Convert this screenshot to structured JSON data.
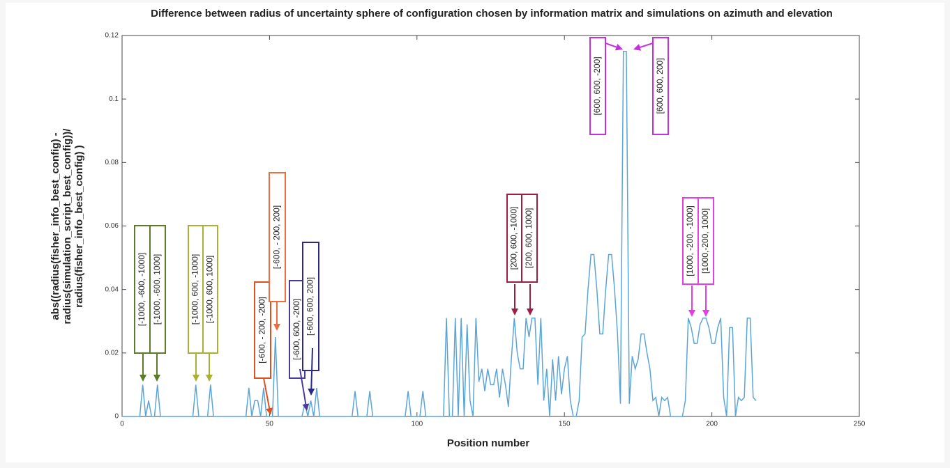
{
  "chart_data": {
    "type": "line",
    "title": "Difference between radius of uncertainty sphere of configuration chosen by information matrix and simulations on azimuth and elevation",
    "xlabel": "Position number",
    "ylabel": [
      "abs((radius(fisher_info_best_config) -",
      "radius(simulation_script_best_config))/",
      "radius(fisher_info_best_config) )"
    ],
    "color": "#5aa5d8",
    "x": [
      0,
      1,
      2,
      3,
      4,
      5,
      6,
      7,
      8,
      9,
      10,
      11,
      12,
      13,
      14,
      15,
      16,
      17,
      18,
      19,
      20,
      21,
      22,
      23,
      24,
      25,
      26,
      27,
      28,
      29,
      30,
      31,
      32,
      33,
      34,
      35,
      36,
      37,
      38,
      39,
      40,
      41,
      42,
      43,
      44,
      45,
      46,
      47,
      48,
      49,
      50,
      51,
      52,
      53,
      54,
      55,
      56,
      57,
      58,
      59,
      60,
      61,
      62,
      63,
      64,
      65,
      66,
      67,
      68,
      69,
      70,
      71,
      72,
      73,
      74,
      75,
      76,
      77,
      78,
      79,
      80,
      81,
      82,
      83,
      84,
      85,
      86,
      87,
      88,
      89,
      90,
      91,
      92,
      93,
      94,
      95,
      96,
      97,
      98,
      99,
      100,
      101,
      102,
      103,
      104,
      105,
      106,
      107,
      108,
      109,
      110,
      111,
      112,
      113,
      114,
      115,
      116,
      117,
      118,
      119,
      120,
      121,
      122,
      123,
      124,
      125,
      126,
      127,
      128,
      129,
      130,
      131,
      132,
      133,
      134,
      135,
      136,
      137,
      138,
      139,
      140,
      141,
      142,
      143,
      144,
      145,
      146,
      147,
      148,
      149,
      150,
      151,
      152,
      153,
      154,
      155,
      156,
      157,
      158,
      159,
      160,
      161,
      162,
      163,
      164,
      165,
      166,
      167,
      168,
      169,
      170,
      171,
      172,
      173,
      174,
      175,
      176,
      177,
      178,
      179,
      180,
      181,
      182,
      183,
      184,
      185,
      186,
      187,
      188,
      189,
      190,
      191,
      192,
      193,
      194,
      195,
      196,
      197,
      198,
      199,
      200,
      201,
      202,
      203,
      204,
      205,
      206,
      207,
      208,
      209,
      210,
      211,
      212,
      213,
      214,
      215
    ],
    "values": [
      0,
      0,
      0,
      0,
      0,
      0,
      0,
      0.01,
      0,
      0.005,
      0,
      0,
      0.01,
      0,
      0,
      0,
      0,
      0,
      0,
      0,
      0,
      0,
      0,
      0,
      0,
      0.01,
      0,
      0,
      0,
      0,
      0.01,
      0,
      0,
      0,
      0,
      0,
      0,
      0,
      0,
      0,
      0,
      0,
      0,
      0.009,
      0,
      0.005,
      0.005,
      0,
      0.009,
      0,
      0,
      0,
      0.025,
      0,
      0,
      0,
      0,
      0,
      0,
      0,
      0,
      0,
      0.004,
      0,
      0.005,
      0,
      0.009,
      0,
      0,
      0,
      0,
      0,
      0,
      0,
      0,
      0,
      0,
      0,
      0,
      0.008,
      0,
      0,
      0,
      0,
      0.008,
      0,
      0,
      0,
      0,
      0,
      0,
      0,
      0,
      0,
      0,
      0,
      0,
      0.008,
      0,
      0,
      0,
      0,
      0.008,
      0,
      0,
      0,
      0,
      0,
      0,
      0,
      0.031,
      0,
      0,
      0.031,
      0,
      0.031,
      0,
      0.029,
      0.005,
      0,
      0.031,
      0.011,
      0.015,
      0.008,
      0.015,
      0.01,
      0.01,
      0.015,
      0.006,
      0.015,
      0.01,
      0.003,
      0.018,
      0.031,
      0.02,
      0.015,
      0.015,
      0.031,
      0.025,
      0.031,
      0.031,
      0.01,
      0.031,
      0.005,
      0.015,
      0,
      0.018,
      0.005,
      0.019,
      0.007,
      0.015,
      0.019,
      0.005,
      0,
      0,
      0.005,
      0.025,
      0.026,
      0.04,
      0.051,
      0.051,
      0.04,
      0.026,
      0.026,
      0.04,
      0.051,
      0.051,
      0.04,
      0.026,
      0.004,
      0.115,
      0.115,
      0.004,
      0.019,
      0.015,
      0.018,
      0.026,
      0.026,
      0.02,
      0.015,
      0.005,
      0.006,
      0,
      0.006,
      0.005,
      0.006,
      0,
      0,
      0,
      0,
      0,
      0.005,
      0.031,
      0.028,
      0.023,
      0.023,
      0.029,
      0.031,
      0.031,
      0.028,
      0.023,
      0.023,
      0.028,
      0.031,
      0.006,
      0,
      0.028,
      0.028,
      0,
      0.006,
      0.005,
      0.006,
      0.031,
      0.031,
      0.006,
      0.005
    ],
    "xlim": [
      0,
      250
    ],
    "xticks": [
      0,
      50,
      100,
      150,
      200,
      250
    ],
    "ylim": [
      0,
      0.12
    ],
    "yticks": [
      0,
      0.02,
      0.04,
      0.06,
      0.08,
      0.1,
      0.12
    ],
    "annotations": [
      {
        "text": "[-1000, -600, -1000]",
        "color": "#5b7b2b"
      },
      {
        "text": "[-1000, -600, 1000]",
        "color": "#5b7b2b"
      },
      {
        "text": "[-1000, 600, -1000]",
        "color": "#a9b033"
      },
      {
        "text": "[-1000, 600, 1000]",
        "color": "#a9b033"
      },
      {
        "text": "[-600, - 200, -200]",
        "color": "#e0501e"
      },
      {
        "text": "[-600, - 200, 200]",
        "color": "#ee6d3c"
      },
      {
        "text": "[-600, 600, -200]",
        "color": "#4b3b9b"
      },
      {
        "text": "[-600, 600, 200]",
        "color": "#2b2b85"
      },
      {
        "text": "[200, 600, -1000]",
        "color": "#9e1f43"
      },
      {
        "text": "[200, 600, 1000]",
        "color": "#9e1f43"
      },
      {
        "text": "[600, 600, -200]",
        "color": "#c42fe0"
      },
      {
        "text": "[600, 600, 200]",
        "color": "#c42fe0"
      },
      {
        "text": "[1000, -200, -1000]",
        "color": "#e43fe4"
      },
      {
        "text": "[1000,-200, 1000]",
        "color": "#e43fe4"
      }
    ]
  }
}
